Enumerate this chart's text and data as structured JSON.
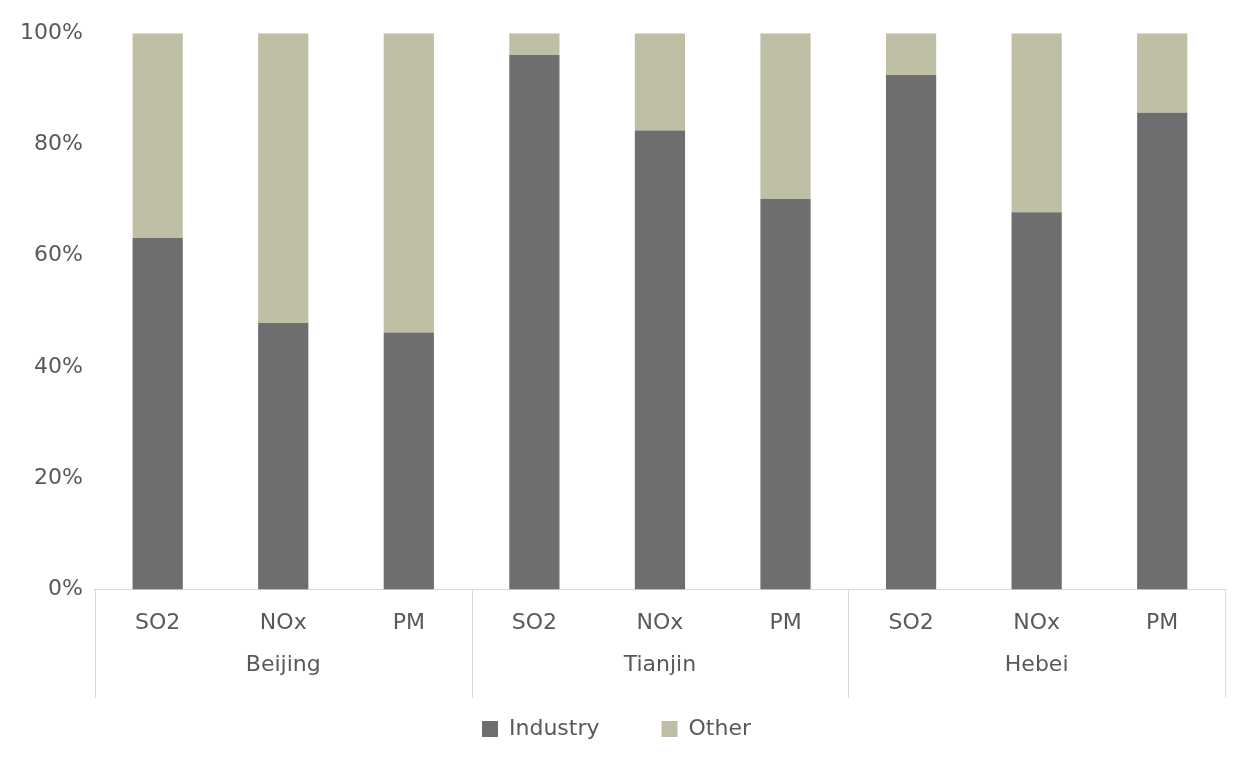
{
  "chart_data": {
    "type": "bar",
    "stacked": true,
    "categories": [
      "SO2",
      "NOx",
      "PM",
      "SO2",
      "NOx",
      "PM",
      "SO2",
      "NOx",
      "PM"
    ],
    "annotations": [
      "Beijing",
      "Tianjin",
      "Hebei"
    ],
    "series": [
      {
        "name": "Industry",
        "color": "#6e6e6e",
        "values": [
          63.2,
          47.9,
          46.2,
          96.1,
          82.5,
          70.2,
          92.5,
          67.8,
          85.7
        ]
      },
      {
        "name": "Other",
        "color": "#bfbfa5",
        "values": [
          36.8,
          52.1,
          53.8,
          3.9,
          17.5,
          29.8,
          7.5,
          32.2,
          14.3
        ]
      }
    ],
    "ylim": [
      0,
      100
    ],
    "yticks": [
      {
        "value": 0,
        "label": "0%"
      },
      {
        "value": 20,
        "label": "20%"
      },
      {
        "value": 40,
        "label": "40%"
      },
      {
        "value": 60,
        "label": "60%"
      },
      {
        "value": 80,
        "label": "80%"
      },
      {
        "value": 100,
        "label": "100%"
      }
    ],
    "grid": false,
    "legend": "bottom"
  }
}
